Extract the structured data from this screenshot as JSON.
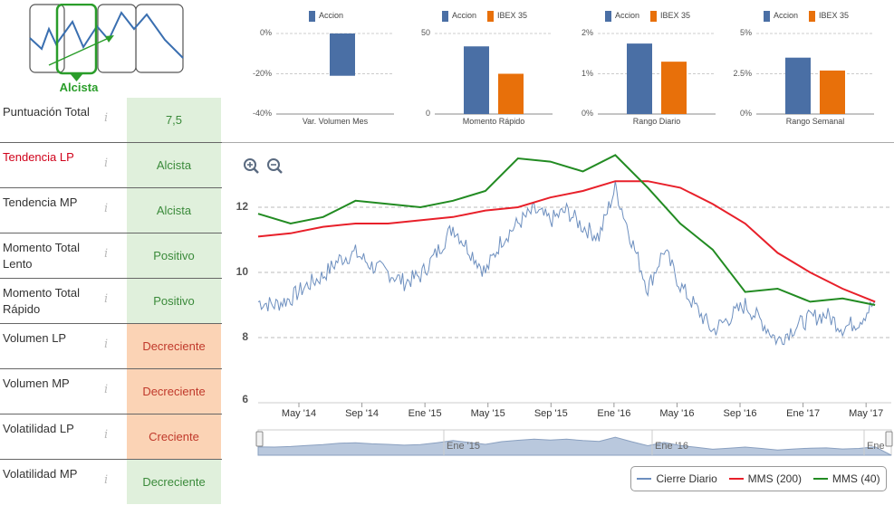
{
  "trend_logo": {
    "label": "Alcista",
    "color": "#2a9d2a"
  },
  "rows": [
    {
      "label": "Puntuación Total",
      "value": "7,5",
      "status": "green",
      "highlight": false
    },
    {
      "label": "Tendencia LP",
      "value": "Alcista",
      "status": "green",
      "highlight": true
    },
    {
      "label": "Tendencia MP",
      "value": "Alcista",
      "status": "green",
      "highlight": false
    },
    {
      "label": "Momento Total Lento",
      "value": "Positivo",
      "status": "green",
      "highlight": false
    },
    {
      "label": "Momento Total Rápido",
      "value": "Positivo",
      "status": "green",
      "highlight": false
    },
    {
      "label": "Volumen LP",
      "value": "Decreciente",
      "status": "orange",
      "highlight": false
    },
    {
      "label": "Volumen MP",
      "value": "Decreciente",
      "status": "orange",
      "highlight": false
    },
    {
      "label": "Volatilidad LP",
      "value": "Creciente",
      "status": "orange",
      "highlight": false
    },
    {
      "label": "Volatilidad MP",
      "value": "Decreciente",
      "status": "green",
      "highlight": false
    }
  ],
  "info_icon": "i",
  "colors": {
    "accion": "#4a6fa5",
    "ibex": "#e8700a",
    "cierre": "#6d8fbf",
    "mms200": "#e8202a",
    "mms40": "#228b22",
    "nav_fill": "#b9c8dd"
  },
  "chart_data": [
    {
      "type": "bar",
      "title": "Var. Volumen Mes",
      "series": [
        {
          "name": "Accion",
          "values": [
            -21
          ]
        }
      ],
      "ylim": [
        -40,
        0
      ],
      "yticks": [
        "0%",
        "-20%",
        "-40%"
      ]
    },
    {
      "type": "bar",
      "title": "Momento Rápido",
      "series": [
        {
          "name": "Accion",
          "values": [
            42
          ]
        },
        {
          "name": "IBEX 35",
          "values": [
            25
          ]
        }
      ],
      "ylim": [
        0,
        50
      ],
      "yticks": [
        "50",
        "0"
      ]
    },
    {
      "type": "bar",
      "title": "Rango Diario",
      "series": [
        {
          "name": "Accion",
          "values": [
            1.75
          ]
        },
        {
          "name": "IBEX 35",
          "values": [
            1.3
          ]
        }
      ],
      "ylim": [
        0,
        2
      ],
      "yticks": [
        "2%",
        "1%",
        "0%"
      ]
    },
    {
      "type": "bar",
      "title": "Rango Semanal",
      "series": [
        {
          "name": "Accion",
          "values": [
            3.5
          ]
        },
        {
          "name": "IBEX 35",
          "values": [
            2.7
          ]
        }
      ],
      "ylim": [
        0,
        5
      ],
      "yticks": [
        "5%",
        "2.5%",
        "0%"
      ]
    },
    {
      "type": "line",
      "title": "",
      "x_labels": [
        "May '14",
        "Sep '14",
        "Ene '15",
        "May '15",
        "Sep '15",
        "Ene '16",
        "May '16",
        "Sep '16",
        "Ene '17",
        "May '17"
      ],
      "x_range": [
        0,
        39
      ],
      "ylim": [
        6,
        13.5
      ],
      "yticks": [
        12,
        10,
        8,
        6
      ],
      "series": [
        {
          "name": "Cierre Diario",
          "x": [
            0,
            1,
            2,
            3,
            4,
            5,
            6,
            7,
            8,
            9,
            10,
            11,
            12,
            13,
            14,
            15,
            16,
            17,
            18,
            19,
            20,
            21,
            22,
            23,
            24,
            25,
            26,
            27,
            28,
            29,
            30,
            31,
            32,
            33,
            34,
            35,
            36,
            37,
            38
          ],
          "values": [
            9.1,
            9.0,
            9.2,
            9.6,
            9.9,
            10.4,
            10.6,
            10.2,
            10.0,
            9.7,
            9.9,
            10.6,
            11.4,
            10.7,
            10.0,
            11.0,
            11.5,
            11.9,
            11.6,
            11.9,
            11.4,
            11.1,
            12.6,
            11.0,
            9.5,
            10.7,
            9.6,
            8.9,
            8.2,
            8.6,
            9.0,
            8.5,
            7.9,
            8.3,
            8.6,
            8.7,
            8.3,
            8.5,
            9.1
          ]
        },
        {
          "name": "MMS (200)",
          "x": [
            0,
            2,
            4,
            6,
            8,
            10,
            12,
            14,
            16,
            18,
            20,
            22,
            24,
            26,
            28,
            30,
            32,
            34,
            36,
            38
          ],
          "values": [
            11.1,
            11.2,
            11.4,
            11.5,
            11.5,
            11.6,
            11.7,
            11.9,
            12.0,
            12.3,
            12.5,
            12.8,
            12.8,
            12.6,
            12.1,
            11.5,
            10.6,
            10.0,
            9.5,
            9.1
          ]
        },
        {
          "name": "MMS (40)",
          "x": [
            0,
            2,
            4,
            6,
            8,
            10,
            12,
            14,
            16,
            18,
            20,
            22,
            24,
            26,
            28,
            30,
            32,
            34,
            36,
            38
          ],
          "values": [
            11.8,
            11.5,
            11.7,
            12.2,
            12.1,
            12.0,
            12.2,
            12.5,
            13.5,
            13.4,
            13.1,
            13.6,
            12.6,
            11.5,
            10.7,
            9.4,
            9.5,
            9.1,
            9.2,
            9.0
          ]
        }
      ],
      "navigator_labels": [
        "Ene '15",
        "Ene '16",
        "Ene"
      ],
      "legend": [
        "Cierre Diario",
        "MMS (200)",
        "MMS (40)"
      ]
    }
  ]
}
